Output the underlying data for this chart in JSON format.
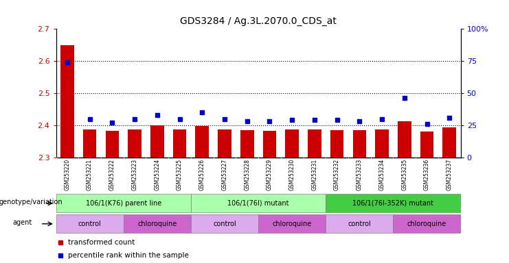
{
  "title": "GDS3284 / Ag.3L.2070.0_CDS_at",
  "samples": [
    "GSM253220",
    "GSM253221",
    "GSM253222",
    "GSM253223",
    "GSM253224",
    "GSM253225",
    "GSM253226",
    "GSM253227",
    "GSM253228",
    "GSM253229",
    "GSM253230",
    "GSM253231",
    "GSM253232",
    "GSM253233",
    "GSM253234",
    "GSM253235",
    "GSM253236",
    "GSM253237"
  ],
  "bar_values": [
    2.648,
    2.387,
    2.383,
    2.388,
    2.4,
    2.388,
    2.398,
    2.387,
    2.385,
    2.383,
    2.387,
    2.387,
    2.386,
    2.386,
    2.388,
    2.413,
    2.381,
    2.393
  ],
  "dot_values": [
    74,
    30,
    27,
    30,
    33,
    30,
    35,
    30,
    28,
    28,
    29,
    29,
    29,
    28,
    30,
    46,
    26,
    31
  ],
  "bar_color": "#cc0000",
  "dot_color": "#0000cc",
  "ylim_left": [
    2.3,
    2.7
  ],
  "ylim_right": [
    0,
    100
  ],
  "yticks_left": [
    2.3,
    2.4,
    2.5,
    2.6,
    2.7
  ],
  "yticks_right": [
    0,
    25,
    50,
    75,
    100
  ],
  "ytick_labels_right": [
    "0",
    "25",
    "50",
    "75",
    "100%"
  ],
  "grid_values": [
    2.4,
    2.5,
    2.6
  ],
  "genotype_groups": [
    {
      "label": "106/1(K76) parent line",
      "start": 0,
      "end": 5,
      "color": "#aaffaa"
    },
    {
      "label": "106/1(76I) mutant",
      "start": 6,
      "end": 11,
      "color": "#aaffaa"
    },
    {
      "label": "106/1(76I-352K) mutant",
      "start": 12,
      "end": 17,
      "color": "#44cc44"
    }
  ],
  "agent_groups": [
    {
      "label": "control",
      "start": 0,
      "end": 2,
      "color": "#ddaaee"
    },
    {
      "label": "chloroquine",
      "start": 3,
      "end": 5,
      "color": "#cc66cc"
    },
    {
      "label": "control",
      "start": 6,
      "end": 8,
      "color": "#ddaaee"
    },
    {
      "label": "chloroquine",
      "start": 9,
      "end": 11,
      "color": "#cc66cc"
    },
    {
      "label": "control",
      "start": 12,
      "end": 14,
      "color": "#ddaaee"
    },
    {
      "label": "chloroquine",
      "start": 15,
      "end": 17,
      "color": "#cc66cc"
    }
  ],
  "bar_width": 0.6,
  "background_color": "#ffffff",
  "left_label_color": "#cc0000",
  "right_label_color": "#0000cc",
  "sample_bg_color": "#d8d8d8"
}
